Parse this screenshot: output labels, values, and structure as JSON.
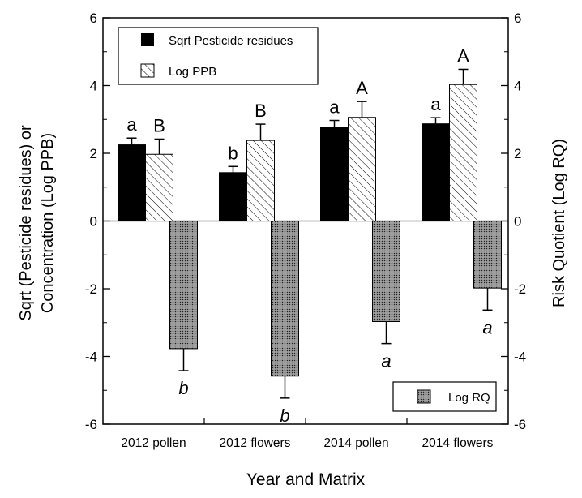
{
  "chart_data": {
    "type": "bar",
    "xlabel": "Year and Matrix",
    "ylabel_left": [
      "Sqrt (Pesticide residues) or",
      "Concentration (Log PPB)"
    ],
    "ylabel_right": "Risk Quotient (Log RQ)",
    "categories": [
      "2012 pollen",
      "2012 flowers",
      "2014 pollen",
      "2014 flowers"
    ],
    "ylim": [
      -6,
      6
    ],
    "yticks": [
      -6,
      -4,
      -2,
      0,
      2,
      4,
      6
    ],
    "tick_labels": [
      "-6",
      "-4",
      "-2",
      "0",
      "2",
      "4",
      "6"
    ],
    "grid": false,
    "legend": [
      {
        "name": "Sqrt Pesticide residues",
        "location": "top-left"
      },
      {
        "name": "Log PPB",
        "location": "top-left"
      },
      {
        "name": "Log RQ",
        "location": "bottom-right"
      }
    ],
    "series": [
      {
        "name": "Sqrt Pesticide residues",
        "axis": "left",
        "fill": "#000000",
        "values": [
          2.25,
          1.43,
          2.77,
          2.87
        ],
        "errors": [
          0.2,
          0.18,
          0.2,
          0.18
        ],
        "labels": [
          "a",
          "b",
          "a",
          "a"
        ]
      },
      {
        "name": "Log PPB",
        "axis": "left",
        "fill": "hatch",
        "values": [
          1.97,
          2.38,
          3.06,
          4.03
        ],
        "errors": [
          0.45,
          0.48,
          0.47,
          0.45
        ],
        "labels": [
          "B",
          "B",
          "A",
          "A"
        ]
      },
      {
        "name": "Log RQ",
        "axis": "right",
        "fill": "stipple",
        "values": [
          -3.77,
          -4.58,
          -2.97,
          -1.98
        ],
        "errors": [
          0.65,
          0.65,
          0.65,
          0.65
        ],
        "labels": [
          "b",
          "b",
          "a",
          "a"
        ]
      }
    ]
  }
}
